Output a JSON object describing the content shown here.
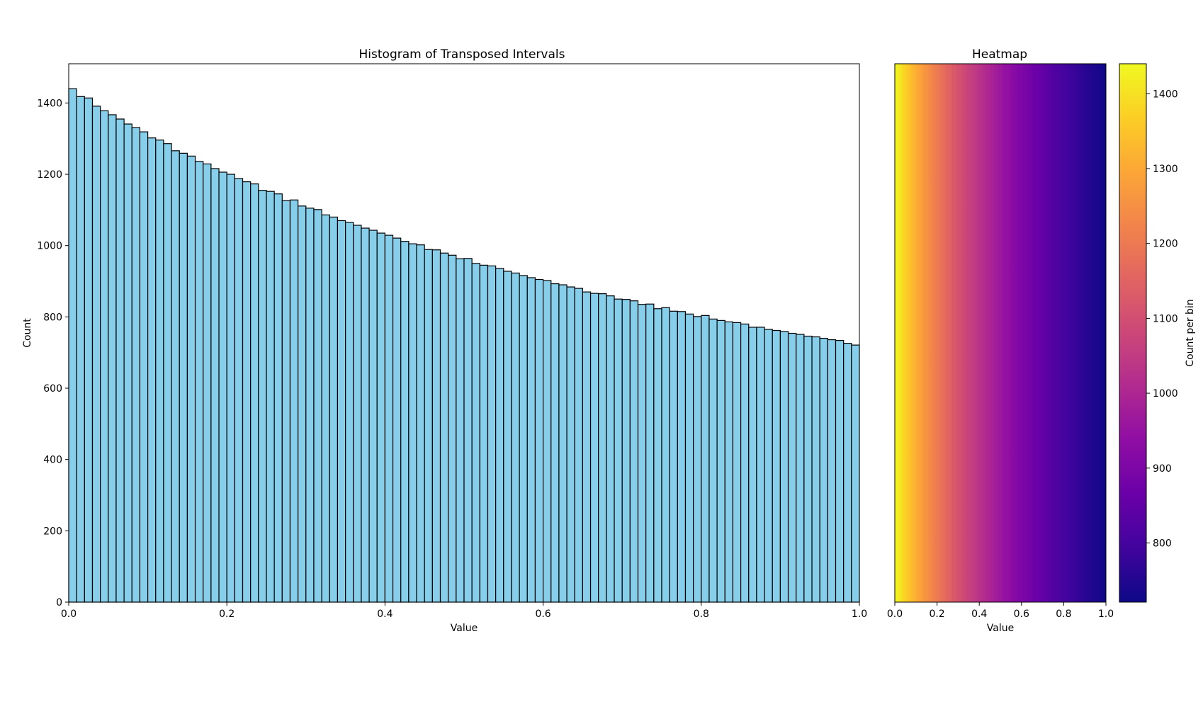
{
  "chart_data": [
    {
      "type": "bar",
      "title": "Histogram of Transposed Intervals",
      "xlabel": "Value",
      "ylabel": "Count",
      "xlim": [
        0,
        1
      ],
      "ylim": [
        0,
        1510
      ],
      "x_ticks": [
        "0.0",
        "0.2",
        "0.4",
        "0.6",
        "0.8",
        "1.0"
      ],
      "y_ticks": [
        "0",
        "200",
        "400",
        "600",
        "800",
        "1000",
        "1200",
        "1400"
      ],
      "bin_width": 0.01,
      "bar_color": "#87ceeb",
      "edge_color": "#000000",
      "values": [
        1440,
        1418,
        1414,
        1391,
        1378,
        1367,
        1355,
        1341,
        1331,
        1319,
        1302,
        1296,
        1286,
        1266,
        1259,
        1251,
        1236,
        1229,
        1216,
        1206,
        1200,
        1188,
        1179,
        1173,
        1155,
        1152,
        1145,
        1126,
        1128,
        1111,
        1105,
        1101,
        1086,
        1080,
        1070,
        1065,
        1057,
        1049,
        1043,
        1035,
        1029,
        1021,
        1012,
        1005,
        1002,
        989,
        988,
        979,
        973,
        963,
        964,
        950,
        945,
        943,
        936,
        928,
        923,
        916,
        910,
        905,
        902,
        893,
        890,
        884,
        880,
        870,
        866,
        865,
        859,
        850,
        849,
        845,
        835,
        836,
        823,
        826,
        816,
        815,
        808,
        801,
        804,
        794,
        790,
        786,
        784,
        780,
        771,
        771,
        765,
        762,
        759,
        754,
        751,
        746,
        744,
        740,
        736,
        734,
        726,
        721
      ]
    },
    {
      "type": "heatmap",
      "title": "Heatmap",
      "xlabel": "Value",
      "xlim": [
        0,
        1
      ],
      "x_ticks": [
        "0.0",
        "0.2",
        "0.4",
        "0.6",
        "0.8",
        "1.0"
      ],
      "colormap": "plasma",
      "source": "histogram counts per bin",
      "colorbar": {
        "label": "Count per bin",
        "range": [
          721,
          1440
        ],
        "ticks": [
          "800",
          "900",
          "1000",
          "1100",
          "1200",
          "1300",
          "1400"
        ]
      }
    }
  ]
}
